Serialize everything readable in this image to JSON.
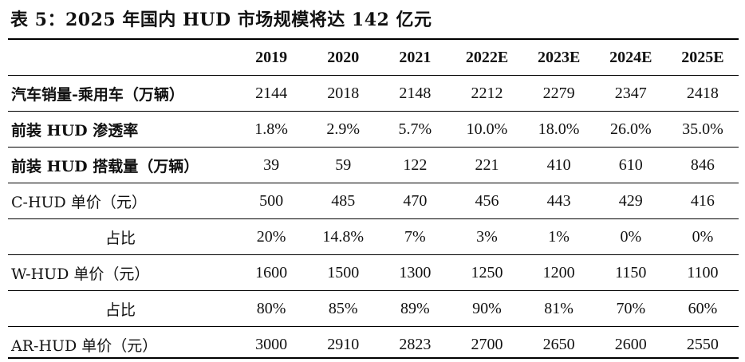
{
  "title": "表 5：2025 年国内 HUD 市场规模将达 142 亿元",
  "header": [
    "",
    "2019",
    "2020",
    "2021",
    "2022E",
    "2023E",
    "2024E",
    "2025E"
  ],
  "rows": [
    {
      "label": "汽车销量-乘用车（万辆）",
      "bold": true,
      "indent": false,
      "values": [
        "2144",
        "2018",
        "2148",
        "2212",
        "2279",
        "2347",
        "2418"
      ]
    },
    {
      "label": "前装 HUD 渗透率",
      "bold": true,
      "indent": false,
      "values": [
        "1.8%",
        "2.9%",
        "5.7%",
        "10.0%",
        "18.0%",
        "26.0%",
        "35.0%"
      ]
    },
    {
      "label": "前装 HUD 搭载量（万辆）",
      "bold": true,
      "indent": false,
      "values": [
        "39",
        "59",
        "122",
        "221",
        "410",
        "610",
        "846"
      ]
    },
    {
      "label": "C-HUD 单价（元）",
      "bold": false,
      "indent": false,
      "values": [
        "500",
        "485",
        "470",
        "456",
        "443",
        "429",
        "416"
      ]
    },
    {
      "label": "占比",
      "bold": false,
      "indent": true,
      "values": [
        "20%",
        "14.8%",
        "7%",
        "3%",
        "1%",
        "0%",
        "0%"
      ]
    },
    {
      "label": "W-HUD 单价（元）",
      "bold": false,
      "indent": false,
      "values": [
        "1600",
        "1500",
        "1300",
        "1250",
        "1200",
        "1150",
        "1100"
      ]
    },
    {
      "label": "占比",
      "bold": false,
      "indent": true,
      "values": [
        "80%",
        "85%",
        "89%",
        "90%",
        "81%",
        "70%",
        "60%"
      ]
    },
    {
      "label": "AR-HUD 单价（元）",
      "bold": false,
      "indent": false,
      "values": [
        "3000",
        "2910",
        "2823",
        "2700",
        "2650",
        "2600",
        "2550"
      ]
    }
  ]
}
